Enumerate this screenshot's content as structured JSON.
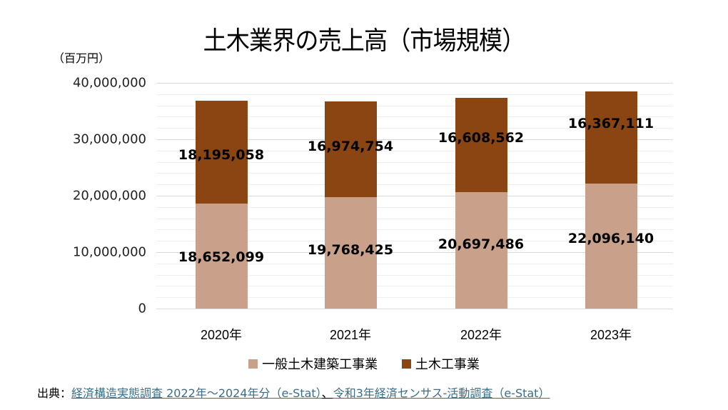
{
  "title": "土木業界の売上高（市場規模）",
  "unit_label": "（百万円）",
  "colors": {
    "general": "#c9a08a",
    "civil": "#8b4513",
    "link": "#3b6e86"
  },
  "legend": [
    {
      "label": "一般土木建築工事業",
      "color": "#c9a08a"
    },
    {
      "label": "土木工事業",
      "color": "#8b4513"
    }
  ],
  "source": {
    "prefix": "出典：",
    "link1": "経済構造実態調査 2022年～2024年分（e-Stat）",
    "separator": "、",
    "link2": "令和3年経済センサス-活動調査（e-Stat）"
  },
  "yticks": [
    "40,000,000",
    "30,000,000",
    "20,000,000",
    "10,000,000",
    "0"
  ],
  "xticks": [
    "2020年",
    "2021年",
    "2022年",
    "2023年"
  ],
  "labels": {
    "general": [
      "18,652,099",
      "19,768,425",
      "20,697,486",
      "22,096,140"
    ],
    "civil": [
      "18,195,058",
      "16,974,754",
      "16,608,562",
      "16,367,111"
    ]
  },
  "chart_data": {
    "type": "bar",
    "stacked": true,
    "title": "土木業界の売上高（市場規模）",
    "xlabel": "",
    "ylabel": "（百万円）",
    "categories": [
      "2020年",
      "2021年",
      "2022年",
      "2023年"
    ],
    "series": [
      {
        "name": "一般土木建築工事業",
        "color": "#c9a08a",
        "values": [
          18652099,
          19768425,
          20697486,
          22096140
        ]
      },
      {
        "name": "土木工事業",
        "color": "#8b4513",
        "values": [
          18195058,
          16974754,
          16608562,
          16367111
        ]
      }
    ],
    "ylim": [
      0,
      40000000
    ],
    "yticks": [
      0,
      10000000,
      20000000,
      30000000,
      40000000
    ],
    "grid": true,
    "legend_position": "bottom"
  }
}
